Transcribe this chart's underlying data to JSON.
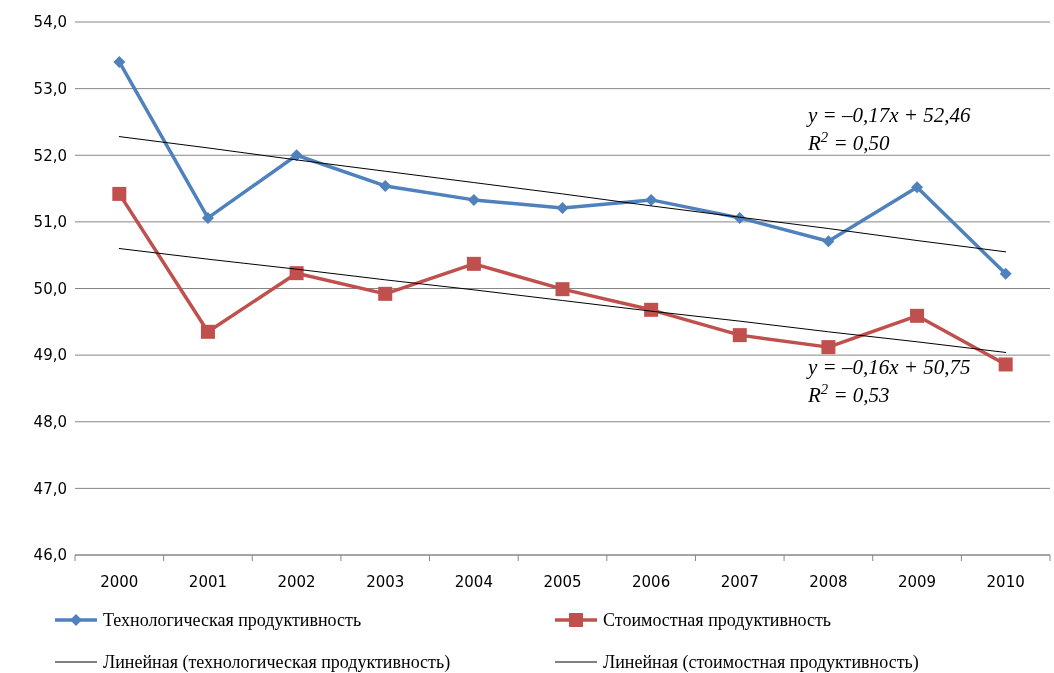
{
  "chart_data": {
    "type": "line",
    "categories": [
      "2000",
      "2001",
      "2002",
      "2003",
      "2004",
      "2005",
      "2006",
      "2007",
      "2008",
      "2009",
      "2010"
    ],
    "ylim": [
      46,
      54
    ],
    "yticks": [
      {
        "value": 46,
        "label": "46,0"
      },
      {
        "value": 47,
        "label": "47,0"
      },
      {
        "value": 48,
        "label": "48,0"
      },
      {
        "value": 49,
        "label": "49,0"
      },
      {
        "value": 50,
        "label": "50,0"
      },
      {
        "value": 51,
        "label": "51,0"
      },
      {
        "value": 52,
        "label": "52,0"
      },
      {
        "value": 53,
        "label": "53,0"
      },
      {
        "value": 54,
        "label": "54,0"
      }
    ],
    "grid": "y",
    "legend": "bottom",
    "series": [
      {
        "name": "Технологическая продуктивность",
        "color": "#4f81bd",
        "marker": "diamond",
        "values": [
          53.4,
          51.06,
          52.0,
          51.54,
          51.33,
          51.21,
          51.33,
          51.06,
          50.71,
          51.52,
          50.22
        ]
      },
      {
        "name": "Стоимостная продуктивность",
        "color": "#c0504d",
        "marker": "square",
        "values": [
          51.42,
          49.35,
          50.23,
          49.92,
          50.37,
          49.99,
          49.68,
          49.3,
          49.12,
          49.59,
          48.86
        ]
      },
      {
        "name": "Линейная (технологическая продуктивность)",
        "type": "line",
        "color": "#000000",
        "marker": "none",
        "values": [
          52.28,
          52.11,
          51.93,
          51.76,
          51.59,
          51.42,
          51.24,
          51.07,
          50.9,
          50.72,
          50.55
        ]
      },
      {
        "name": "Линейная (стоимостная продуктивность)",
        "type": "line",
        "color": "#000000",
        "marker": "none",
        "values": [
          50.6,
          50.44,
          50.29,
          50.13,
          49.98,
          49.82,
          49.66,
          49.51,
          49.35,
          49.2,
          49.04
        ]
      }
    ],
    "annotations": [
      "y = –0,17x + 52,46",
      "R$^{2}$ = 0,50",
      "y = –0,16x + 50,75",
      "R$^{2}$ = 0,53"
    ]
  }
}
